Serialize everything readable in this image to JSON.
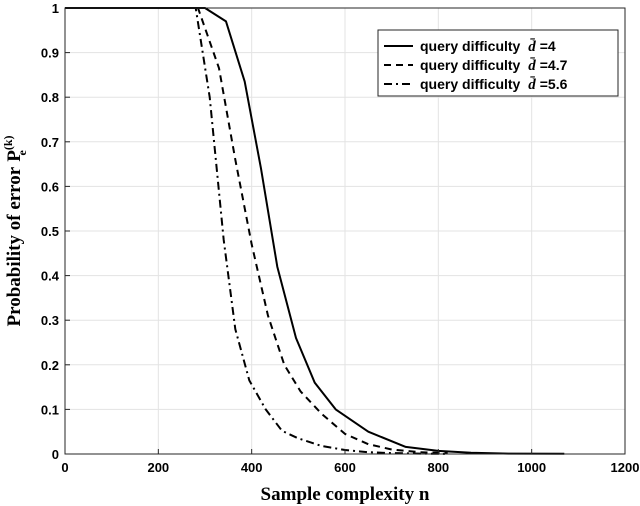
{
  "chart_data": {
    "type": "line",
    "title": "",
    "xlabel": "Sample complexity n",
    "ylabel": "Probability of error",
    "ylabel_symbol": "P",
    "ylabel_sub": "e",
    "ylabel_sup": "(k)",
    "xlim": [
      0,
      1200
    ],
    "ylim": [
      0,
      1
    ],
    "xticks": [
      0,
      200,
      400,
      600,
      800,
      1000,
      1200
    ],
    "yticks": [
      0,
      0.1,
      0.2,
      0.3,
      0.4,
      0.5,
      0.6,
      0.7,
      0.8,
      0.9,
      1
    ],
    "grid": true,
    "legend_position": "top-right",
    "legend_prefix": "query difficulty",
    "legend_symbol": "d̄",
    "series": [
      {
        "name": "=4",
        "style": "solid",
        "x": [
          0,
          300,
          345,
          385,
          420,
          455,
          495,
          535,
          580,
          650,
          730,
          800,
          870,
          950,
          1070
        ],
        "y": [
          1,
          1,
          0.97,
          0.835,
          0.64,
          0.42,
          0.26,
          0.16,
          0.1,
          0.05,
          0.016,
          0.007,
          0.003,
          0.001,
          0.0005
        ]
      },
      {
        "name": "=4.7",
        "style": "dashed",
        "x": [
          0,
          285,
          330,
          365,
          400,
          435,
          470,
          505,
          550,
          600,
          650,
          700,
          760,
          820
        ],
        "y": [
          1,
          1,
          0.865,
          0.66,
          0.47,
          0.31,
          0.2,
          0.14,
          0.09,
          0.045,
          0.022,
          0.01,
          0.004,
          0.002
        ]
      },
      {
        "name": "=5.6",
        "style": "dashdot",
        "x": [
          0,
          280,
          310,
          340,
          365,
          395,
          430,
          465,
          500,
          550,
          600,
          650,
          700,
          760,
          820
        ],
        "y": [
          1,
          1,
          0.8,
          0.48,
          0.28,
          0.165,
          0.1,
          0.052,
          0.035,
          0.018,
          0.009,
          0.004,
          0.002,
          0.0008,
          0.0003
        ]
      }
    ]
  }
}
